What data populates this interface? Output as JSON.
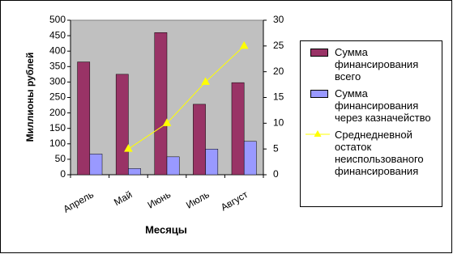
{
  "chart_data": {
    "type": "bar",
    "categories": [
      "Апрель",
      "Май",
      "Июнь",
      "Июль",
      "Август"
    ],
    "x_label": "Месяцы",
    "y_label": "Миллионы рублей",
    "series": [
      {
        "name": "Сумма финансирования всего",
        "color": "#993366",
        "values": [
          365,
          325,
          460,
          228,
          298
        ]
      },
      {
        "name": "Сумма финансирования через казначейство",
        "color": "#9999ff",
        "values": [
          67,
          20,
          58,
          83,
          108
        ]
      },
      {
        "name": "Среднедневной остаток неиспользованого финансирования",
        "color": "#ffff00",
        "type": "line",
        "axis": "y2",
        "values": [
          null,
          5,
          10,
          18,
          25
        ]
      }
    ],
    "ylim": [
      0,
      500
    ],
    "yticks": [
      0,
      50,
      100,
      150,
      200,
      250,
      300,
      350,
      400,
      450,
      500
    ],
    "y2lim": [
      0,
      30
    ],
    "y2ticks": [
      0,
      5,
      10,
      15,
      20,
      25,
      30
    ],
    "grid": false,
    "legend": "right",
    "plot_background": "#c0c0c0"
  }
}
